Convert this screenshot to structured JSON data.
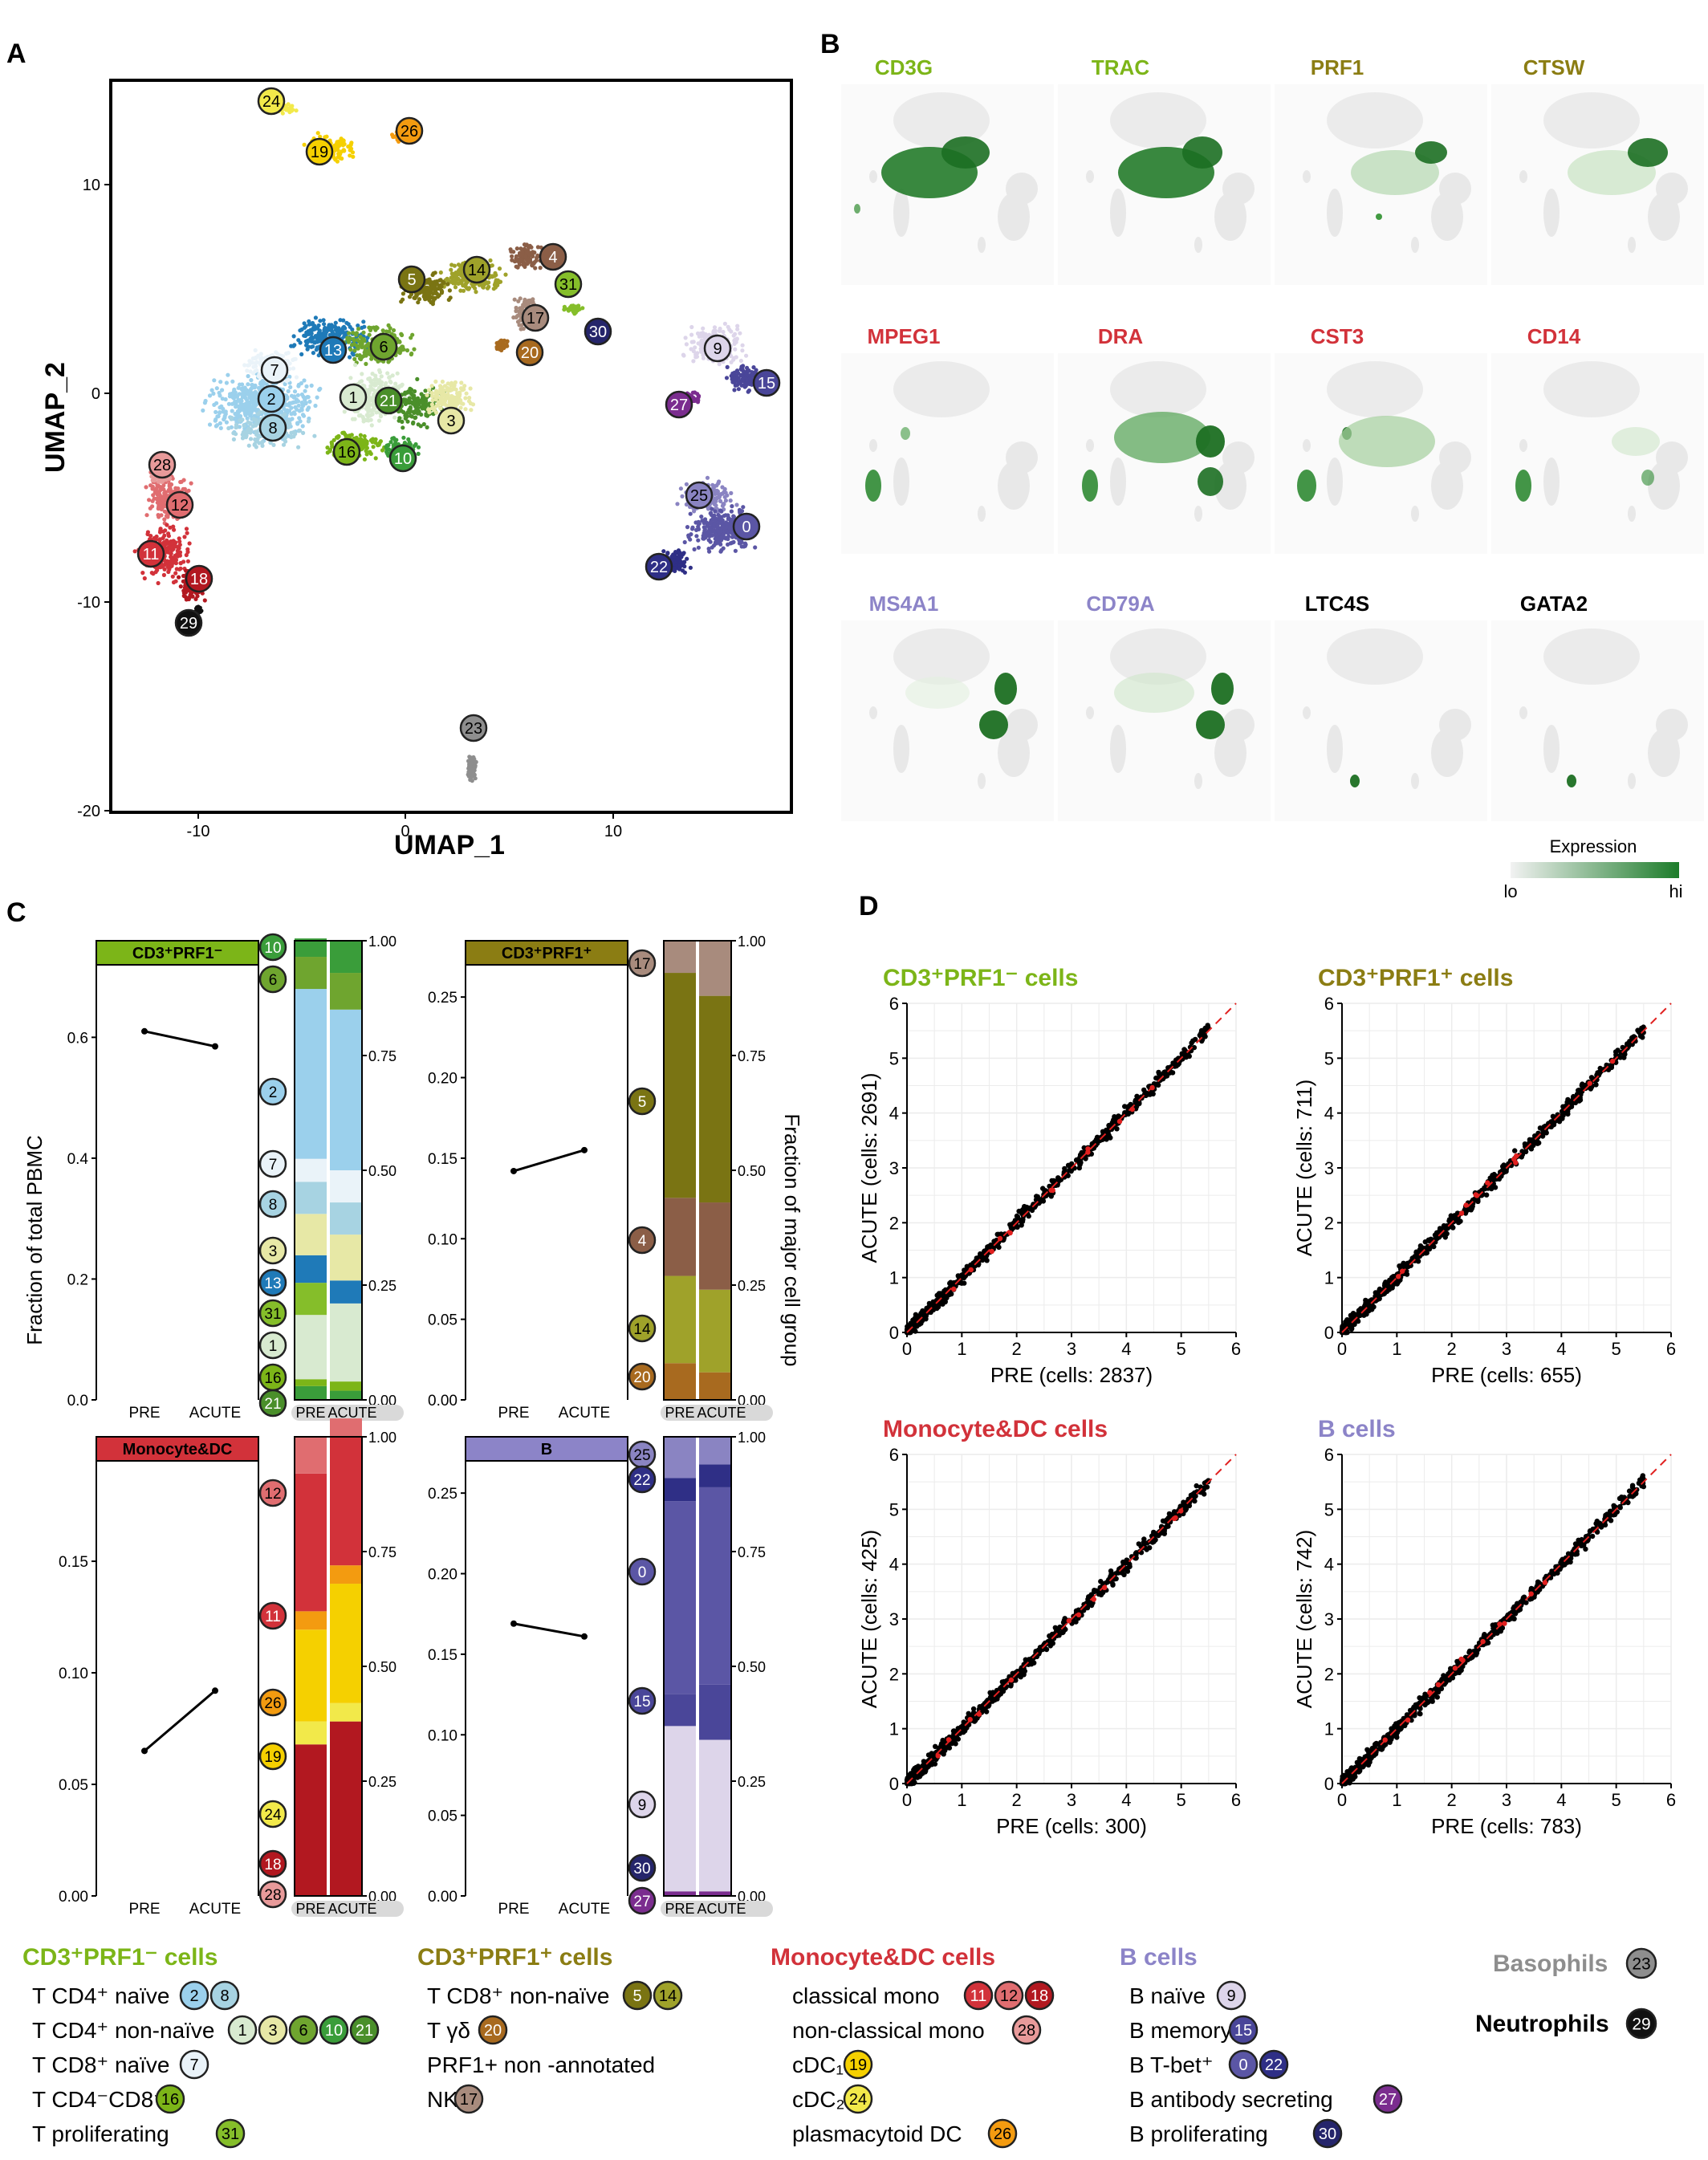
{
  "panels": {
    "a": "A",
    "b": "B",
    "c": "C",
    "d": "D"
  },
  "umap": {
    "xlabel": "UMAP_1",
    "ylabel": "UMAP_2",
    "xticks": [
      "-10",
      "0",
      "10"
    ],
    "yticks": [
      "10",
      "0",
      "-10",
      "-20"
    ]
  },
  "genes": {
    "row1": [
      {
        "name": "CD3G",
        "color": "#7cb518"
      },
      {
        "name": "TRAC",
        "color": "#7cb518"
      },
      {
        "name": "PRF1",
        "color": "#8b7d13"
      },
      {
        "name": "CTSW",
        "color": "#8b7d13"
      }
    ],
    "row2": [
      {
        "name": "MPEG1",
        "color": "#d2323a"
      },
      {
        "name": "DRA",
        "color": "#d2323a"
      },
      {
        "name": "CST3",
        "color": "#d2323a"
      },
      {
        "name": "CD14",
        "color": "#d2323a"
      }
    ],
    "row3": [
      {
        "name": "MS4A1",
        "color": "#8c84c8"
      },
      {
        "name": "CD79A",
        "color": "#8c84c8"
      },
      {
        "name": "LTC4S",
        "color": "#000000"
      },
      {
        "name": "GATA2",
        "color": "#000000"
      }
    ],
    "expression": {
      "title": "Expression",
      "lo": "lo",
      "hi": "hi"
    }
  },
  "panel_c": {
    "ylabel_left": "Fraction of total PBMC",
    "ylabel_right": "Fraction of major cell group",
    "xcats": [
      "PRE",
      "ACUTE"
    ],
    "groups": [
      {
        "title": "CD3⁺PRF1⁻",
        "color": "#7cb518",
        "yticks": [
          "0.0",
          "0.2",
          "0.4",
          "0.6"
        ],
        "pre": 0.61,
        "acute": 0.585,
        "ymax": 0.72,
        "clusters": [
          "10",
          "6",
          "2",
          "7",
          "8",
          "3",
          "13",
          "31",
          "1",
          "16",
          "21"
        ]
      },
      {
        "title": "CD3⁺PRF1⁺",
        "color": "#8b7d13",
        "yticks": [
          "0.00",
          "0.05",
          "0.10",
          "0.15",
          "0.20",
          "0.25"
        ],
        "pre": 0.142,
        "acute": 0.155,
        "ymax": 0.27,
        "clusters": [
          "17",
          "5",
          "4",
          "14",
          "20"
        ]
      },
      {
        "title": "Monocyte&DC",
        "color": "#d2323a",
        "yticks": [
          "0.00",
          "0.05",
          "0.10",
          "0.15"
        ],
        "pre": 0.065,
        "acute": 0.092,
        "ymax": 0.195,
        "clusters": [
          "12",
          "11",
          "26",
          "19",
          "24",
          "18",
          "28"
        ]
      },
      {
        "title": "B",
        "color": "#8c84c8",
        "yticks": [
          "0.00",
          "0.05",
          "0.10",
          "0.15",
          "0.20",
          "0.25"
        ],
        "pre": 0.169,
        "acute": 0.161,
        "ymax": 0.27,
        "clusters": [
          "25",
          "22",
          "0",
          "15",
          "9",
          "30",
          "27"
        ]
      }
    ],
    "bar_yticks": [
      "0.00",
      "0.25",
      "0.50",
      "0.75",
      "1.00"
    ]
  },
  "panel_d": {
    "plots": [
      {
        "title": "CD3⁺PRF1⁻ cells",
        "color": "#7cb518",
        "xlabel": "PRE (cells: 2837)",
        "ylabel": "ACUTE (cells: 2691)"
      },
      {
        "title": "CD3⁺PRF1⁺ cells",
        "color": "#8b7d13",
        "xlabel": "PRE (cells: 655)",
        "ylabel": "ACUTE (cells: 711)"
      },
      {
        "title": "Monocyte&DC cells",
        "color": "#d2323a",
        "xlabel": "PRE (cells: 300)",
        "ylabel": "ACUTE (cells: 425)"
      },
      {
        "title": "B cells",
        "color": "#8c84c8",
        "xlabel": "PRE (cells: 783)",
        "ylabel": "ACUTE (cells: 742)"
      }
    ],
    "ticks": [
      "0",
      "1",
      "2",
      "3",
      "4",
      "5",
      "6"
    ]
  },
  "legend": {
    "groups": [
      {
        "title": "CD3⁺PRF1⁻ cells",
        "color": "#7cb518",
        "items": [
          {
            "label": "T CD4⁺ naïve",
            "clusters": [
              "2",
              "8"
            ]
          },
          {
            "label": "T CD4⁺ non-naïve",
            "clusters": [
              "1",
              "3",
              "6",
              "10",
              "21"
            ]
          },
          {
            "label": "T CD8⁺ naïve",
            "clusters": [
              "7"
            ]
          },
          {
            "label": "T CD4⁻CD8⁻",
            "clusters": [
              "16"
            ]
          },
          {
            "label": "T proliferating",
            "clusters": [
              "31"
            ]
          }
        ]
      },
      {
        "title": "CD3⁺PRF1⁺ cells",
        "color": "#8b7d13",
        "items": [
          {
            "label": "T CD8⁺ non-naïve",
            "clusters": [
              "5",
              "14"
            ]
          },
          {
            "label": "T γδ",
            "clusters": [
              "20"
            ]
          },
          {
            "label": "PRF1+ non -annotated",
            "clusters": []
          },
          {
            "label": "NK",
            "clusters": [
              "17"
            ]
          }
        ]
      },
      {
        "title": "Monocyte&DC cells",
        "color": "#d2323a",
        "items": [
          {
            "label": "classical mono",
            "clusters": [
              "11",
              "12",
              "18"
            ]
          },
          {
            "label": "non-classical mono",
            "clusters": [
              "28"
            ]
          },
          {
            "label": "cDC₁",
            "clusters": [
              "19"
            ]
          },
          {
            "label": "cDC₂",
            "clusters": [
              "24"
            ]
          },
          {
            "label": "plasmacytoid  DC",
            "clusters": [
              "26"
            ]
          }
        ]
      },
      {
        "title": "B cells",
        "color": "#8c84c8",
        "items": [
          {
            "label": "B naïve",
            "clusters": [
              "9"
            ]
          },
          {
            "label": "B memory",
            "clusters": [
              "15"
            ]
          },
          {
            "label": "B T-bet⁺",
            "clusters": [
              "0",
              "22"
            ]
          },
          {
            "label": "B antibody secreting",
            "clusters": [
              "27"
            ]
          },
          {
            "label": "B proliferating",
            "clusters": [
              "30"
            ]
          }
        ]
      }
    ],
    "basophils": {
      "label": "Basophils",
      "cluster": "23"
    },
    "neutrophils": {
      "label": "Neutrophils",
      "cluster": "29"
    }
  },
  "cluster_colors": {
    "0": "#5b56a5",
    "1": "#d8ead0",
    "2": "#9bd0ec",
    "3": "#e7e8a6",
    "4": "#8b5e47",
    "5": "#7a7413",
    "6": "#6fa52f",
    "7": "#eaf3f9",
    "8": "#a7d3e2",
    "9": "#ddd5ea",
    "10": "#3a9d3a",
    "11": "#d2323a",
    "12": "#e06d70",
    "13": "#1f7ab8",
    "14": "#9fa22a",
    "15": "#4a4699",
    "16": "#7cb518",
    "17": "#a88b7d",
    "18": "#b21820",
    "19": "#f5d000",
    "20": "#a86a1f",
    "21": "#4a8f2a",
    "22": "#2f2f86",
    "23": "#8e8e8e",
    "24": "#f2e94a",
    "25": "#8a84c2",
    "26": "#f39b10",
    "27": "#7b2d8f",
    "28": "#e89a9a",
    "29": "#111111",
    "30": "#25256b",
    "31": "#85be2a"
  }
}
